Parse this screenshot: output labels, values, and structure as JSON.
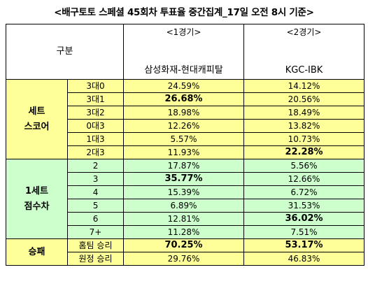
{
  "title": "<배구토토 스페셜 45회차 투표율 중간집계_17일 오전 8시 기준>",
  "header": {
    "category_label": "구분",
    "game1_label": "<1경기>",
    "game2_label": "<2경기>",
    "game1_teams": "삼성화재-현대캐피탈",
    "game2_teams": "KGC-IBK"
  },
  "groups": [
    {
      "label_line1": "세트",
      "label_line2": "스코어",
      "color": "#ffff99",
      "rows": [
        {
          "label": "3대0",
          "g1": "24.59%",
          "g2": "14.12%",
          "g1_bold": false,
          "g2_bold": false
        },
        {
          "label": "3대1",
          "g1": "26.68%",
          "g2": "20.56%",
          "g1_bold": true,
          "g2_bold": false
        },
        {
          "label": "3대2",
          "g1": "18.98%",
          "g2": "18.49%",
          "g1_bold": false,
          "g2_bold": false
        },
        {
          "label": "0대3",
          "g1": "12.26%",
          "g2": "13.82%",
          "g1_bold": false,
          "g2_bold": false
        },
        {
          "label": "1대3",
          "g1": "5.57%",
          "g2": "10.73%",
          "g1_bold": false,
          "g2_bold": false
        },
        {
          "label": "2대3",
          "g1": "11.93%",
          "g2": "22.28%",
          "g1_bold": false,
          "g2_bold": true
        }
      ]
    },
    {
      "label_line1": "1세트",
      "label_line2": "점수차",
      "color": "#ccffcc",
      "rows": [
        {
          "label": "2",
          "g1": "17.87%",
          "g2": "5.56%",
          "g1_bold": false,
          "g2_bold": false
        },
        {
          "label": "3",
          "g1": "35.77%",
          "g2": "12.66%",
          "g1_bold": true,
          "g2_bold": false
        },
        {
          "label": "4",
          "g1": "15.39%",
          "g2": "6.72%",
          "g1_bold": false,
          "g2_bold": false
        },
        {
          "label": "5",
          "g1": "6.89%",
          "g2": "31.53%",
          "g1_bold": false,
          "g2_bold": false
        },
        {
          "label": "6",
          "g1": "12.81%",
          "g2": "36.02%",
          "g1_bold": false,
          "g2_bold": true
        },
        {
          "label": "7+",
          "g1": "11.28%",
          "g2": "7.51%",
          "g1_bold": false,
          "g2_bold": false
        }
      ]
    },
    {
      "label_line1": "승패",
      "label_line2": "",
      "color": "#ffff99",
      "rows": [
        {
          "label": "홈팀 승리",
          "g1": "70.25%",
          "g2": "53.17%",
          "g1_bold": true,
          "g2_bold": true
        },
        {
          "label": "원정 승리",
          "g1": "29.76%",
          "g2": "46.83%",
          "g1_bold": false,
          "g2_bold": false
        }
      ]
    }
  ]
}
